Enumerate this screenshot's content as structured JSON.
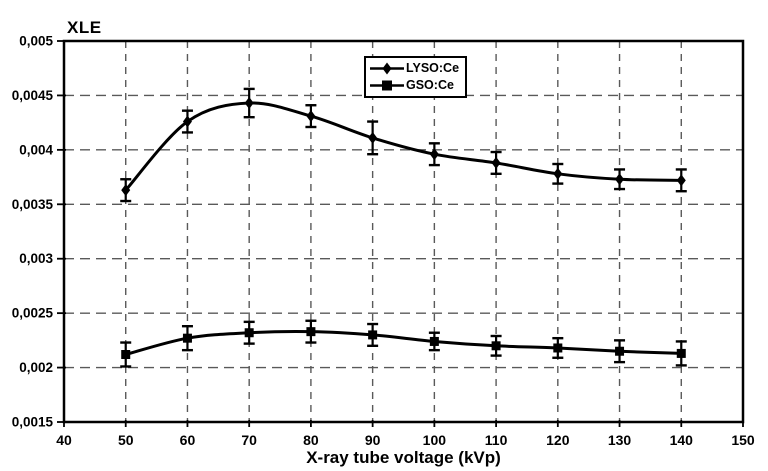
{
  "page": {
    "background": "#ffffff",
    "foreground": "#000000",
    "grid_color": "#595959"
  },
  "chart_data": {
    "type": "line",
    "title": "XLE",
    "xlabel": "X-ray tube voltage (kVp)",
    "ylabel": "XLE",
    "xlim": [
      40,
      150
    ],
    "ylim": [
      0.0015,
      0.005
    ],
    "grid": true,
    "legend_position": "top-center",
    "x_ticks": {
      "values": [
        40,
        50,
        60,
        70,
        80,
        90,
        100,
        110,
        120,
        130,
        140,
        150
      ],
      "labels": [
        "40",
        "50",
        "60",
        "70",
        "80",
        "90",
        "100",
        "110",
        "120",
        "130",
        "140",
        "150"
      ]
    },
    "y_ticks": {
      "values": [
        0.0015,
        0.002,
        0.0025,
        0.003,
        0.0035,
        0.004,
        0.0045,
        0.005
      ],
      "labels": [
        "0,0015",
        "0,002",
        "0,0025",
        "0,003",
        "0,0035",
        "0,004",
        "0,0045",
        "0,005"
      ]
    },
    "x": [
      50,
      60,
      70,
      80,
      90,
      100,
      110,
      120,
      130,
      140
    ],
    "series": [
      {
        "name": "LYSO:Ce",
        "marker": "diamond",
        "color": "#000000",
        "values": [
          0.00363,
          0.00426,
          0.00443,
          0.00431,
          0.00411,
          0.00396,
          0.00388,
          0.00378,
          0.00373,
          0.00372
        ],
        "errors": [
          0.0001,
          0.0001,
          0.00013,
          0.0001,
          0.00015,
          0.0001,
          0.0001,
          9e-05,
          9e-05,
          0.0001
        ]
      },
      {
        "name": "GSO:Ce",
        "marker": "square",
        "color": "#000000",
        "values": [
          0.00212,
          0.00227,
          0.00232,
          0.00233,
          0.0023,
          0.00224,
          0.0022,
          0.00218,
          0.00215,
          0.00213
        ],
        "errors": [
          0.00011,
          0.00011,
          0.0001,
          0.0001,
          0.0001,
          8e-05,
          9e-05,
          9e-05,
          0.0001,
          0.00011
        ]
      }
    ]
  }
}
